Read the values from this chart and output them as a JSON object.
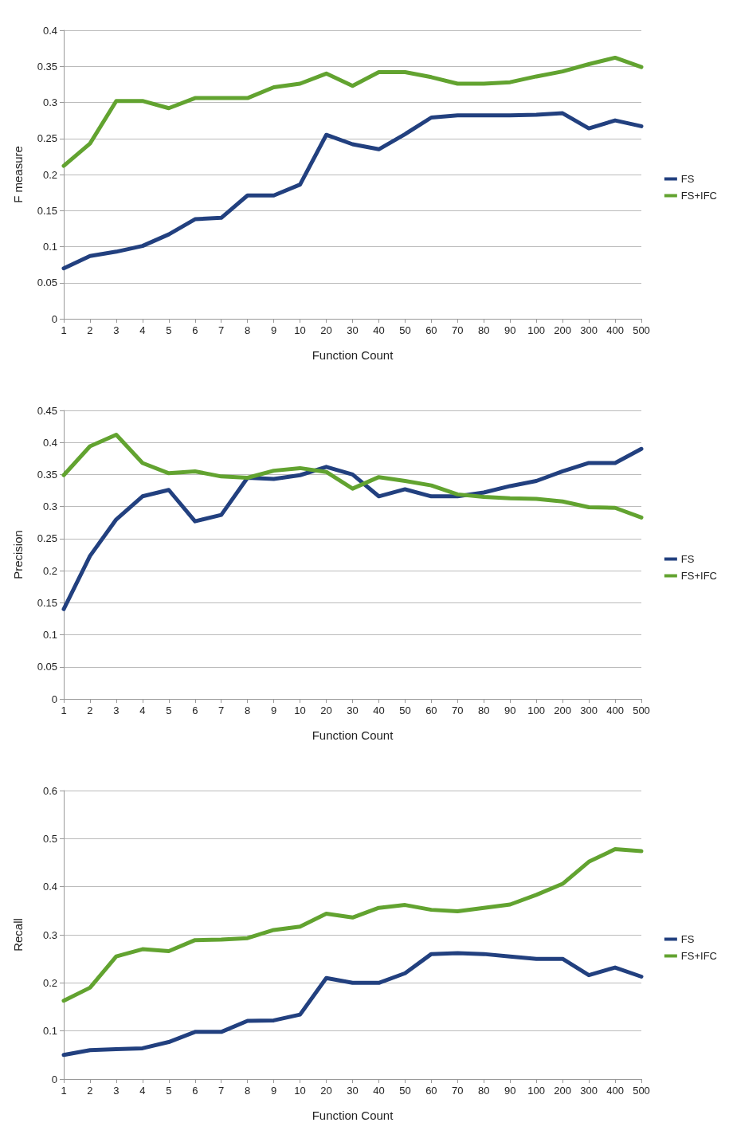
{
  "chart_data": [
    {
      "type": "line",
      "ylabel": "F measure",
      "xlabel": "Function Count",
      "categories": [
        "1",
        "2",
        "3",
        "4",
        "5",
        "6",
        "7",
        "8",
        "9",
        "10",
        "20",
        "30",
        "40",
        "50",
        "60",
        "70",
        "80",
        "90",
        "100",
        "200",
        "300",
        "400",
        "500"
      ],
      "ylim": [
        0,
        0.4
      ],
      "yticks": [
        0,
        0.05,
        0.1,
        0.15,
        0.2,
        0.25,
        0.3,
        0.35,
        0.4
      ],
      "grid": "y",
      "legend": "right",
      "marker": "none",
      "line_style": "solid",
      "series": [
        {
          "name": "FS",
          "color": "#22407f",
          "values": [
            0.07,
            0.087,
            0.093,
            0.101,
            0.117,
            0.138,
            0.14,
            0.171,
            0.171,
            0.186,
            0.255,
            0.242,
            0.235,
            0.256,
            0.279,
            0.282,
            0.282,
            0.282,
            0.283,
            0.285,
            0.264,
            0.275,
            0.267
          ]
        },
        {
          "name": "FS+IFC",
          "color": "#62a330",
          "values": [
            0.212,
            0.243,
            0.302,
            0.302,
            0.292,
            0.306,
            0.306,
            0.306,
            0.321,
            0.326,
            0.34,
            0.323,
            0.342,
            0.342,
            0.335,
            0.326,
            0.326,
            0.328,
            0.336,
            0.343,
            0.353,
            0.362,
            0.349
          ]
        }
      ]
    },
    {
      "type": "line",
      "ylabel": "Precision",
      "xlabel": "Function Count",
      "categories": [
        "1",
        "2",
        "3",
        "4",
        "5",
        "6",
        "7",
        "8",
        "9",
        "10",
        "20",
        "30",
        "40",
        "50",
        "60",
        "70",
        "80",
        "90",
        "100",
        "200",
        "300",
        "400",
        "500"
      ],
      "ylim": [
        0,
        0.45
      ],
      "yticks": [
        0,
        0.05,
        0.1,
        0.15,
        0.2,
        0.25,
        0.3,
        0.35,
        0.4,
        0.45
      ],
      "grid": "y",
      "legend": "right",
      "marker": "none",
      "line_style": "solid",
      "series": [
        {
          "name": "FS",
          "color": "#22407f",
          "values": [
            0.14,
            0.223,
            0.28,
            0.316,
            0.326,
            0.277,
            0.287,
            0.345,
            0.343,
            0.349,
            0.362,
            0.35,
            0.316,
            0.327,
            0.316,
            0.316,
            0.322,
            0.332,
            0.34,
            0.355,
            0.368,
            0.368,
            0.39
          ]
        },
        {
          "name": "FS+IFC",
          "color": "#62a330",
          "values": [
            0.349,
            0.394,
            0.412,
            0.368,
            0.352,
            0.355,
            0.347,
            0.345,
            0.356,
            0.36,
            0.354,
            0.328,
            0.346,
            0.34,
            0.333,
            0.319,
            0.315,
            0.313,
            0.312,
            0.308,
            0.299,
            0.298,
            0.283
          ]
        }
      ]
    },
    {
      "type": "line",
      "ylabel": "Recall",
      "xlabel": "Function Count",
      "categories": [
        "1",
        "2",
        "3",
        "4",
        "5",
        "6",
        "7",
        "8",
        "9",
        "10",
        "20",
        "30",
        "40",
        "50",
        "60",
        "70",
        "80",
        "90",
        "100",
        "200",
        "300",
        "400",
        "500"
      ],
      "ylim": [
        0,
        0.6
      ],
      "yticks": [
        0,
        0.1,
        0.2,
        0.3,
        0.4,
        0.5,
        0.6
      ],
      "grid": "y",
      "legend": "right",
      "marker": "none",
      "line_style": "solid",
      "series": [
        {
          "name": "FS",
          "color": "#22407f",
          "values": [
            0.05,
            0.06,
            0.062,
            0.064,
            0.077,
            0.098,
            0.098,
            0.121,
            0.122,
            0.134,
            0.21,
            0.2,
            0.2,
            0.22,
            0.26,
            0.262,
            0.26,
            0.255,
            0.25,
            0.25,
            0.216,
            0.232,
            0.213
          ]
        },
        {
          "name": "FS+IFC",
          "color": "#62a330",
          "values": [
            0.163,
            0.19,
            0.255,
            0.27,
            0.266,
            0.289,
            0.29,
            0.293,
            0.31,
            0.317,
            0.344,
            0.336,
            0.356,
            0.362,
            0.352,
            0.349,
            0.356,
            0.363,
            0.383,
            0.406,
            0.452,
            0.478,
            0.474
          ]
        }
      ]
    }
  ]
}
